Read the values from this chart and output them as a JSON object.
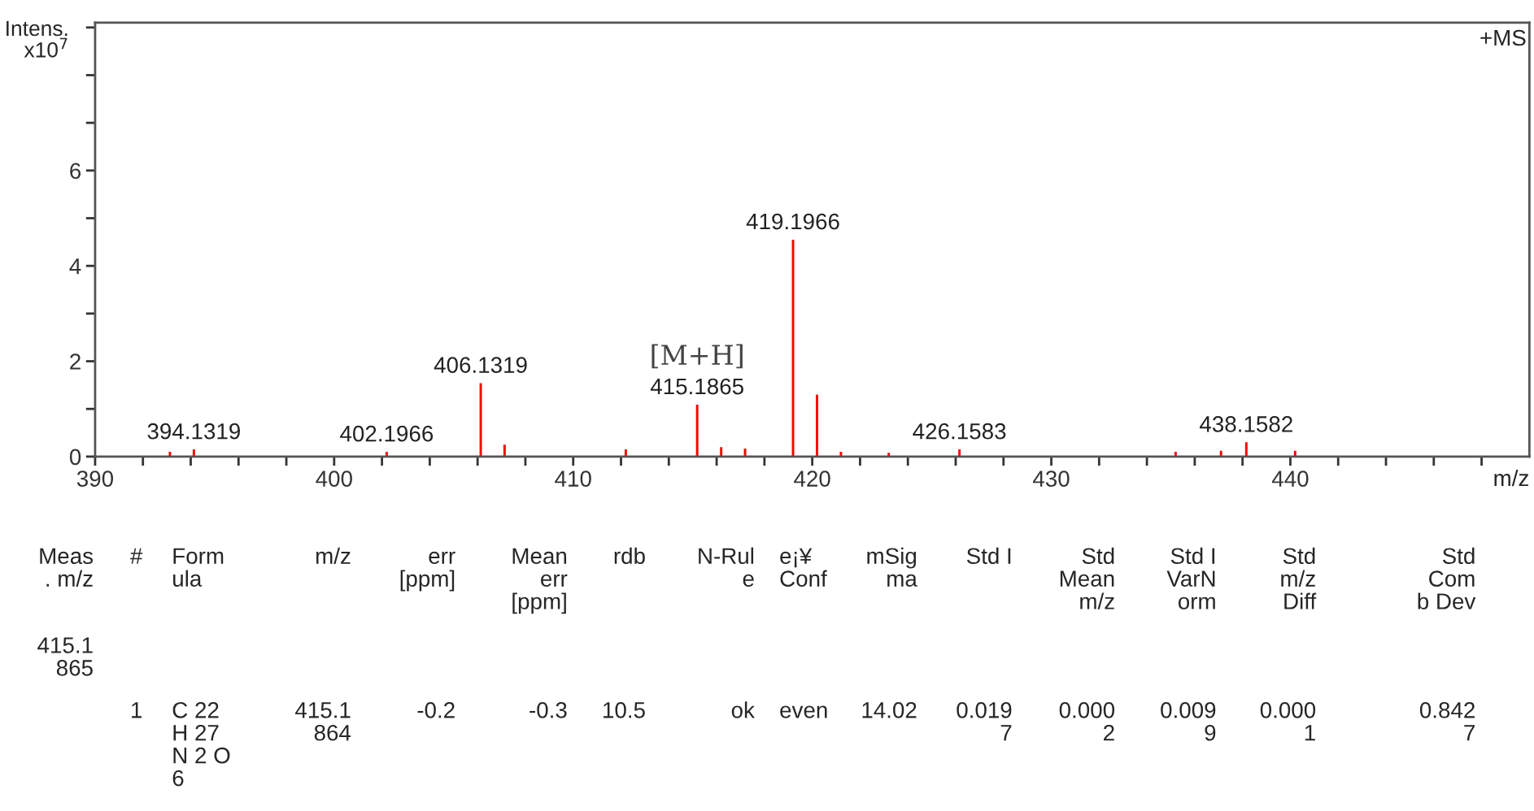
{
  "chart_data": {
    "type": "bar",
    "xlabel": "m/z",
    "ylabel": "Intens.\nx10$^{7}$",
    "x": [
      393.13,
      394.1319,
      402.1966,
      406.1319,
      407.13,
      412.2,
      415.1865,
      416.19,
      417.19,
      419.1966,
      420.2,
      421.2,
      423.2,
      426.1583,
      435.2,
      437.1,
      438.1582,
      440.2
    ],
    "values": [
      0.1,
      0.15,
      0.1,
      1.54,
      0.25,
      0.15,
      1.09,
      0.2,
      0.17,
      4.55,
      1.3,
      0.1,
      0.08,
      0.15,
      0.1,
      0.12,
      0.3,
      0.12
    ],
    "color": "#ff0000",
    "xlim": [
      390,
      450
    ],
    "ylim": [
      0,
      9.1
    ],
    "xticks": [
      390,
      {
        "value": 392,
        "label": null
      },
      {
        "value": 394,
        "label": null
      },
      {
        "value": 396,
        "label": null
      },
      {
        "value": 398,
        "label": null
      },
      400,
      {
        "value": 402,
        "label": null
      },
      {
        "value": 404,
        "label": null
      },
      {
        "value": 406,
        "label": null
      },
      {
        "value": 408,
        "label": null
      },
      410,
      {
        "value": 412,
        "label": null
      },
      {
        "value": 414,
        "label": null
      },
      {
        "value": 416,
        "label": null
      },
      {
        "value": 418,
        "label": null
      },
      420,
      {
        "value": 422,
        "label": null
      },
      {
        "value": 424,
        "label": null
      },
      {
        "value": 426,
        "label": null
      },
      {
        "value": 428,
        "label": null
      },
      430,
      {
        "value": 432,
        "label": null
      },
      {
        "value": 434,
        "label": null
      },
      {
        "value": 436,
        "label": null
      },
      {
        "value": 438,
        "label": null
      },
      440,
      {
        "value": 442,
        "label": null
      },
      {
        "value": 444,
        "label": null
      },
      {
        "value": 446,
        "label": null
      },
      {
        "value": 448,
        "label": null
      }
    ],
    "yticks": [
      0,
      {
        "value": 1,
        "label": null
      },
      2,
      {
        "value": 3,
        "label": null
      },
      4,
      {
        "value": 5,
        "label": null
      },
      6,
      {
        "value": 7,
        "label": null
      },
      {
        "value": 8,
        "label": null
      },
      {
        "value": 9,
        "label": null
      }
    ],
    "grid": false,
    "annotations": [
      "+MS",
      {
        "text": "394.1319",
        "x": 394.1319,
        "y": 0.15
      },
      {
        "text": "402.1966",
        "x": 402.1966,
        "y": 0.1
      },
      {
        "text": "406.1319",
        "x": 406.1319,
        "y": 1.54
      },
      {
        "text": "415.1865",
        "x": 415.1865,
        "y": 1.09
      },
      {
        "text": "[M+H]",
        "x": 415.1865,
        "y": 1.09
      },
      {
        "text": "419.1966",
        "x": 419.1966,
        "y": 4.55
      },
      {
        "text": "426.1583",
        "x": 426.1583,
        "y": 0.15
      },
      {
        "text": "438.1582",
        "x": 438.1582,
        "y": 0.3
      },
      "Meas\n. m/z",
      "#",
      "Form\nula",
      "m/z",
      "err\n[ppm]",
      "Mean\nerr\n[ppm]",
      "rdb",
      "N-Rul\ne",
      "e¡¥\nConf",
      "mSig\nma",
      "Std I",
      "Std\nMean\nm/z",
      "Std I\nVarN\norm",
      "Std\nm/z\nDiff",
      "Std\nCom\nb Dev",
      "415.1\n865",
      "1",
      "C 22\nH 27\nN 2 O\n6",
      "415.1\n864",
      "-0.2",
      "-0.3",
      "10.5",
      "ok",
      "even",
      "14.02",
      "0.019\n7",
      "0.000\n2",
      "0.009\n9",
      "0.000\n1",
      "0.842\n7"
    ]
  }
}
